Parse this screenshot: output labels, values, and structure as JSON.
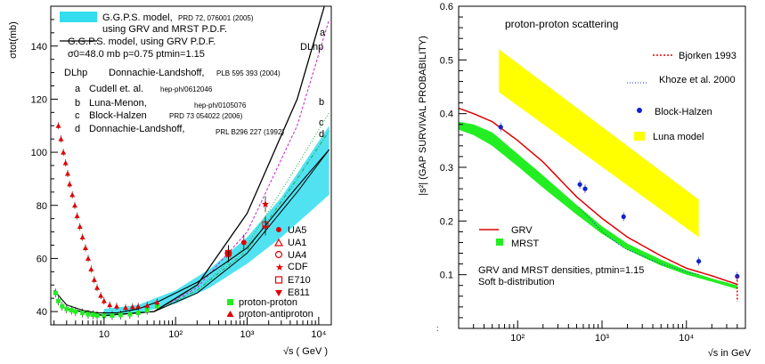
{
  "chart_data": [
    {
      "type": "line",
      "title": "",
      "ylabel": "σtot(mb)",
      "xlabel": "√s ( GeV )",
      "xscale": "log",
      "xlim": [
        1.8,
        15000
      ],
      "ylim": [
        35,
        155
      ],
      "yticks": [
        "40",
        "60",
        "80",
        "100",
        "120",
        "140"
      ],
      "xticks": [
        "10",
        "10²",
        "10³",
        "10⁴"
      ],
      "grid": false,
      "legend_top": [
        {
          "name": "G.G.P.S. model,",
          "ref": "PRD 72, 076001 (2005)",
          "line2": "using GRV and MRST P.D.F.",
          "style": "band"
        },
        {
          "name": "G.G.P.S. model, using GRV P.D.F.",
          "line2": "σ0=48.0 mb p=0.75 ptmin=1.15",
          "style": "line"
        }
      ],
      "legend_models": {
        "header_tag": "DLhp",
        "header_name": "Donnachie-Landshoff,",
        "header_ref": "PLB 595 393 (2004)",
        "items": [
          {
            "tag": "a",
            "name": "Cudell et. al.",
            "ref": "hep-ph/0612046"
          },
          {
            "tag": "b",
            "name": "Luna-Menon,",
            "ref": "hep-ph/0105076"
          },
          {
            "tag": "c",
            "name": "Block-Halzen",
            "ref": "PRD 73 054022 (2006)"
          },
          {
            "tag": "d",
            "name": "Donnachie-Landshoff,",
            "ref": "PRL B296 227 (1992)"
          }
        ]
      },
      "curve_labels": [
        "DLhp",
        "a",
        "b",
        "c",
        "d"
      ],
      "legend_experiments": [
        "UA5",
        "UA1",
        "UA4",
        "CDF",
        "E710",
        "E811"
      ],
      "legend_data": [
        "proton-proton",
        "proton-antiproton"
      ],
      "series": [
        {
          "name": "DLhp",
          "x": [
            3,
            10,
            50,
            200,
            1000,
            5000,
            12000
          ],
          "y": [
            41,
            38.5,
            40,
            50,
            77,
            120,
            155
          ]
        },
        {
          "name": "a",
          "x": [
            3,
            10,
            50,
            200,
            1000,
            5000,
            14000
          ],
          "y": [
            41,
            38.5,
            40,
            49,
            70,
            110,
            150
          ]
        },
        {
          "name": "b",
          "x": [
            3,
            10,
            50,
            200,
            1000,
            5000,
            14000
          ],
          "y": [
            41,
            38.5,
            40,
            48,
            65,
            95,
            115
          ]
        },
        {
          "name": "c",
          "x": [
            3,
            10,
            50,
            200,
            1000,
            5000,
            14000
          ],
          "y": [
            41,
            38.5,
            40,
            48,
            63,
            90,
            108
          ]
        },
        {
          "name": "d",
          "x": [
            3,
            10,
            50,
            200,
            1000,
            5000,
            14000
          ],
          "y": [
            41,
            38.5,
            40,
            47,
            62,
            85,
            101
          ]
        },
        {
          "name": "GGPS GRV",
          "x": [
            2,
            3,
            5,
            8,
            15,
            30,
            60,
            200,
            1000,
            5000,
            14000
          ],
          "y": [
            48,
            42.5,
            40.5,
            39.5,
            39.5,
            41,
            44,
            51,
            64,
            87,
            101
          ]
        },
        {
          "name": "GGPS band upper",
          "x": [
            10,
            30,
            100,
            300,
            1000,
            3000,
            14000
          ],
          "y": [
            41,
            42.5,
            48,
            56,
            68,
            83,
            110
          ]
        },
        {
          "name": "GGPS band lower",
          "x": [
            10,
            30,
            100,
            300,
            1000,
            3000,
            14000
          ],
          "y": [
            38,
            39.5,
            43,
            49,
            58,
            68,
            84
          ]
        }
      ],
      "points": {
        "pbar": [
          [
            2.3,
            110
          ],
          [
            2.5,
            105
          ],
          [
            2.7,
            100
          ],
          [
            2.9,
            96
          ],
          [
            3.1,
            92
          ],
          [
            3.3,
            88
          ],
          [
            3.6,
            84
          ],
          [
            3.9,
            80
          ],
          [
            4.2,
            76
          ],
          [
            4.6,
            72
          ],
          [
            5.0,
            68
          ],
          [
            5.5,
            64
          ],
          [
            6.0,
            60
          ],
          [
            6.6,
            56
          ],
          [
            7.3,
            52
          ],
          [
            8.0,
            49
          ],
          [
            9.0,
            46
          ],
          [
            10,
            44
          ],
          [
            12,
            42.5
          ],
          [
            15,
            42
          ],
          [
            20,
            41.5
          ],
          [
            25,
            41.8
          ],
          [
            30,
            42
          ],
          [
            40,
            42.3
          ],
          [
            55,
            43.5
          ]
        ],
        "pp": [
          [
            2.1,
            47
          ],
          [
            2.3,
            44
          ],
          [
            2.6,
            42
          ],
          [
            3,
            41
          ],
          [
            3.5,
            40.5
          ],
          [
            4,
            40
          ],
          [
            5,
            39.5
          ],
          [
            6,
            39
          ],
          [
            7,
            38.8
          ],
          [
            8,
            38.5
          ],
          [
            10,
            38.4
          ],
          [
            13,
            38.5
          ],
          [
            17,
            38.7
          ],
          [
            23,
            39
          ],
          [
            30,
            39.5
          ],
          [
            40,
            40.5
          ],
          [
            55,
            42
          ]
        ],
        "UA5": [
          [
            546,
            62
          ],
          [
            900,
            66
          ]
        ],
        "UA4": [
          [
            546,
            62
          ]
        ],
        "CDF": [
          [
            546,
            61.5
          ],
          [
            1800,
            80.5
          ]
        ],
        "E710": [
          [
            546,
            62
          ],
          [
            1800,
            72.8
          ]
        ],
        "E811": [
          [
            1800,
            71.7
          ]
        ]
      }
    },
    {
      "type": "line",
      "title": "proton-proton scattering",
      "ylabel": "|s²| (GAP SURVIVAL PROBABILITY)",
      "xlabel": "√s in GeV",
      "xscale": "log",
      "xlim": [
        20,
        50000
      ],
      "ylim": [
        0,
        0.6
      ],
      "yticks": [
        "0.1",
        "0.2",
        "0.3",
        "0.4",
        "0.5",
        "0.6"
      ],
      "xticks": [
        "10²",
        "10³",
        "10⁴"
      ],
      "grid": false,
      "annotation_1": "GRV and MRST densities, ptmin=1.15",
      "annotation_2": "Soft b-distribution",
      "legend": [
        {
          "name": "Bjorken 1993",
          "style": "dashed-red"
        },
        {
          "name": "Khoze et al. 2000",
          "style": "dotted-blue"
        },
        {
          "name": "Block-Halzen",
          "style": "blue-dot"
        },
        {
          "name": "Luna model",
          "style": "yellow-box"
        },
        {
          "name": "GRV",
          "style": "red-line"
        },
        {
          "name": "MRST",
          "style": "green-box"
        }
      ],
      "series": [
        {
          "name": "GRV",
          "x": [
            20,
            30,
            50,
            100,
            200,
            500,
            1000,
            2000,
            5000,
            10000,
            20000,
            40000
          ],
          "y": [
            0.41,
            0.4,
            0.385,
            0.35,
            0.31,
            0.245,
            0.205,
            0.17,
            0.135,
            0.112,
            0.098,
            0.082
          ]
        },
        {
          "name": "MRST upper",
          "x": [
            20,
            30,
            50,
            100,
            200,
            500,
            1000,
            2000,
            5000,
            10000,
            20000,
            40000
          ],
          "y": [
            0.385,
            0.38,
            0.365,
            0.325,
            0.285,
            0.23,
            0.19,
            0.158,
            0.128,
            0.108,
            0.093,
            0.08
          ]
        },
        {
          "name": "MRST lower",
          "x": [
            20,
            30,
            50,
            100,
            200,
            500,
            1000,
            2000,
            5000,
            10000,
            20000,
            40000
          ],
          "y": [
            0.37,
            0.36,
            0.34,
            0.302,
            0.262,
            0.212,
            0.176,
            0.146,
            0.117,
            0.1,
            0.087,
            0.073
          ]
        },
        {
          "name": "Khoze et al. 2000",
          "x": [
            540,
            1000,
            1800,
            5000,
            10000,
            14000
          ],
          "y": [
            0.225,
            0.18,
            0.15,
            0.12,
            0.105,
            0.1
          ]
        },
        {
          "name": "Luna upper",
          "x": [
            60,
            14000
          ],
          "y": [
            0.52,
            0.24
          ]
        },
        {
          "name": "Luna lower",
          "x": [
            60,
            14000
          ],
          "y": [
            0.44,
            0.17
          ]
        }
      ],
      "points": {
        "Block-Halzen": [
          [
            63,
            0.375
          ],
          [
            546,
            0.268
          ],
          [
            630,
            0.26
          ],
          [
            1800,
            0.208
          ],
          [
            14000,
            0.125
          ],
          [
            40000,
            0.097
          ]
        ],
        "Bjorken": {
          "x": 40000,
          "y1": 0.097,
          "y2": 0.05
        }
      }
    }
  ]
}
